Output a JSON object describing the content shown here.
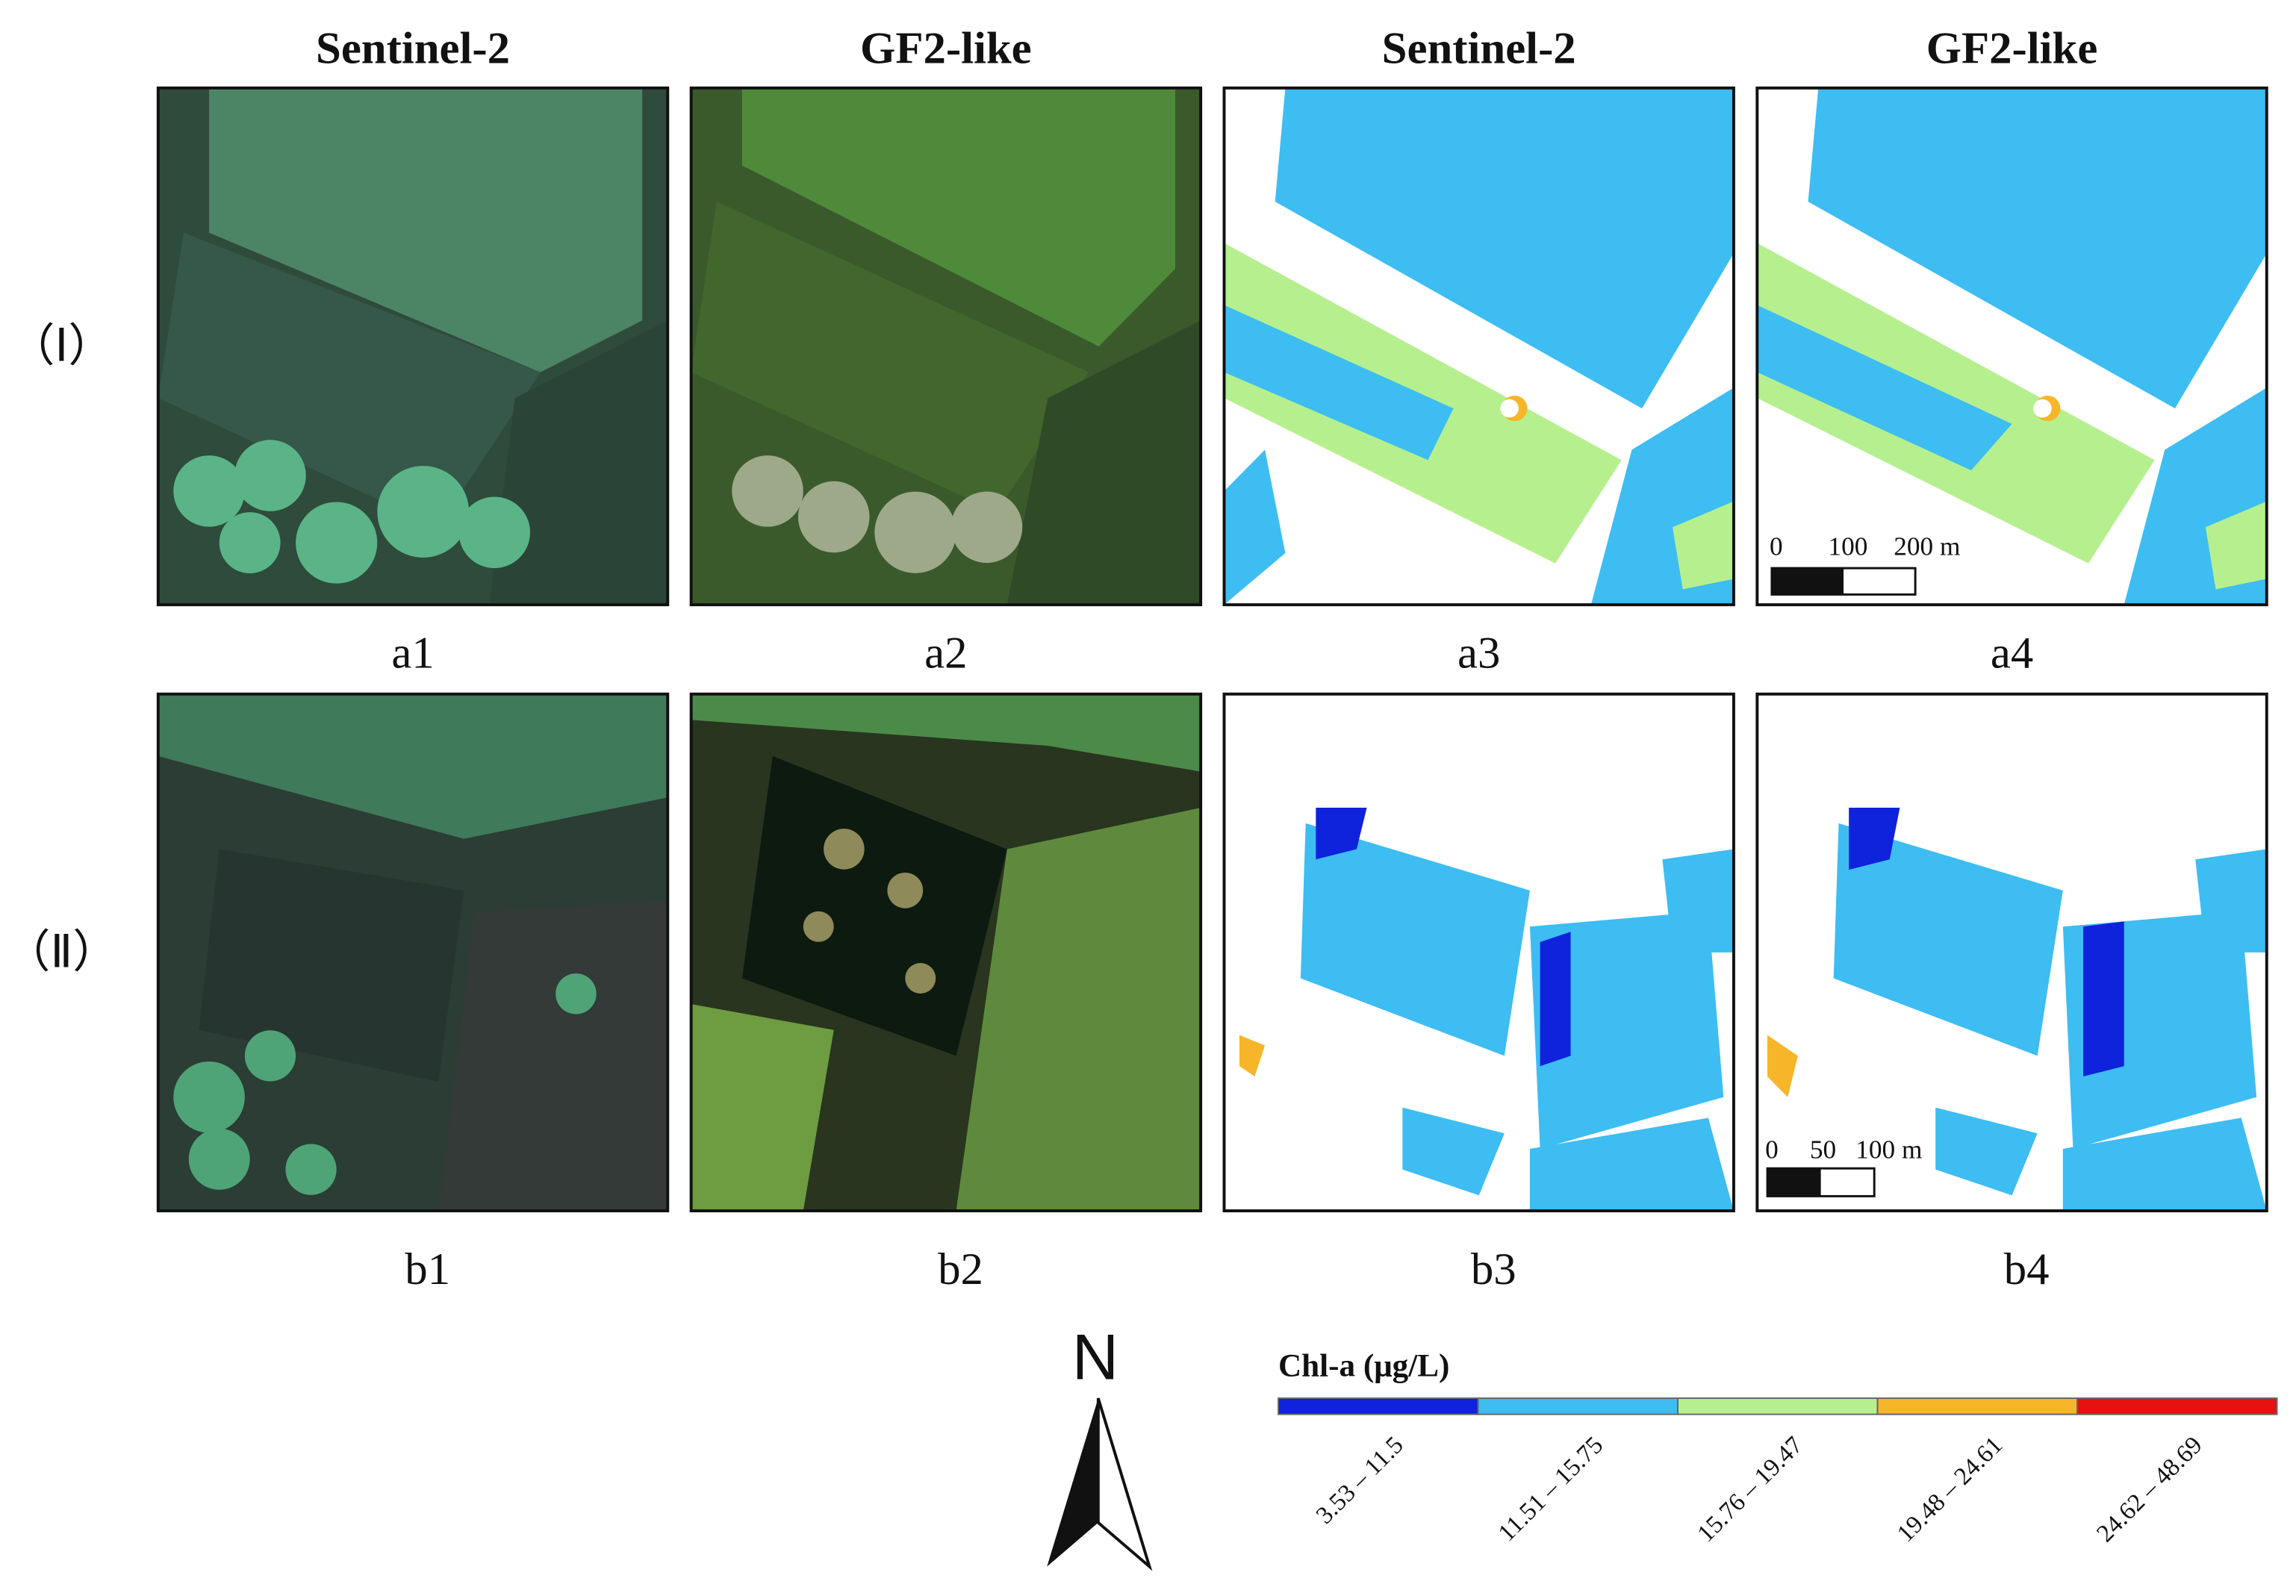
{
  "headers": [
    "Sentinel-2",
    "GF2-like",
    "Sentinel-2",
    "GF2-like"
  ],
  "rows": [
    "（Ⅰ）",
    "（Ⅱ）"
  ],
  "panel_labels": [
    [
      "a1",
      "a2",
      "a3",
      "a4"
    ],
    [
      "b1",
      "b2",
      "b3",
      "b4"
    ]
  ],
  "scale_bars": [
    {
      "ticks": [
        "0",
        "100",
        "200 m"
      ]
    },
    {
      "ticks": [
        "0",
        "50",
        "100 m"
      ]
    }
  ],
  "north": "N",
  "legend": {
    "title": "Chl-a (μg/L)",
    "classes": [
      {
        "label": "3.53 – 11.5",
        "color": "#0f22dc"
      },
      {
        "label": "11.51 – 15.75",
        "color": "#3dbdf2"
      },
      {
        "label": "15.76 – 19.47",
        "color": "#b6f08e"
      },
      {
        "label": "19.48 – 24.61",
        "color": "#f7b52a"
      },
      {
        "label": "24.62 – 48.69",
        "color": "#e61212"
      }
    ]
  }
}
